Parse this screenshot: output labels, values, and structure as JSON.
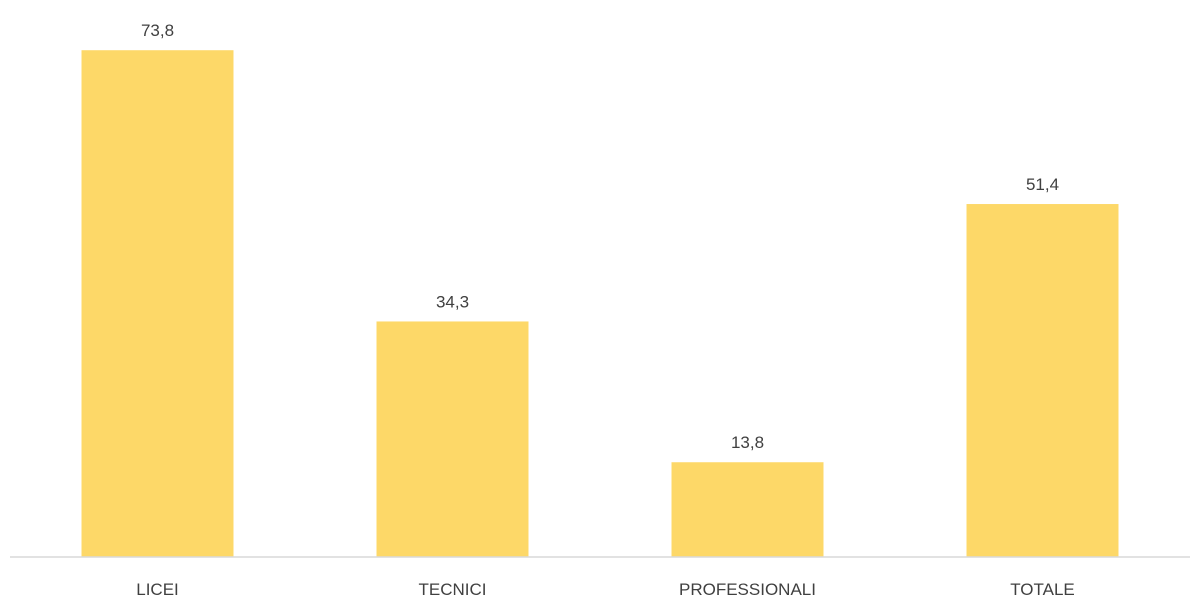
{
  "chart_data": {
    "type": "bar",
    "categories": [
      "LICEI",
      "TECNICI",
      "PROFESSIONALI",
      "TOTALE"
    ],
    "values": [
      73.8,
      34.3,
      13.8,
      51.4
    ],
    "value_labels": [
      "73,8",
      "34,3",
      "13,8",
      "51,4"
    ],
    "title": "",
    "xlabel": "",
    "ylabel": "",
    "ylim": [
      0,
      80
    ],
    "grid": false,
    "legend": "none",
    "colors": {
      "bar": "#FDD868",
      "text": "#404040",
      "axis": "#D9D9D9"
    }
  }
}
